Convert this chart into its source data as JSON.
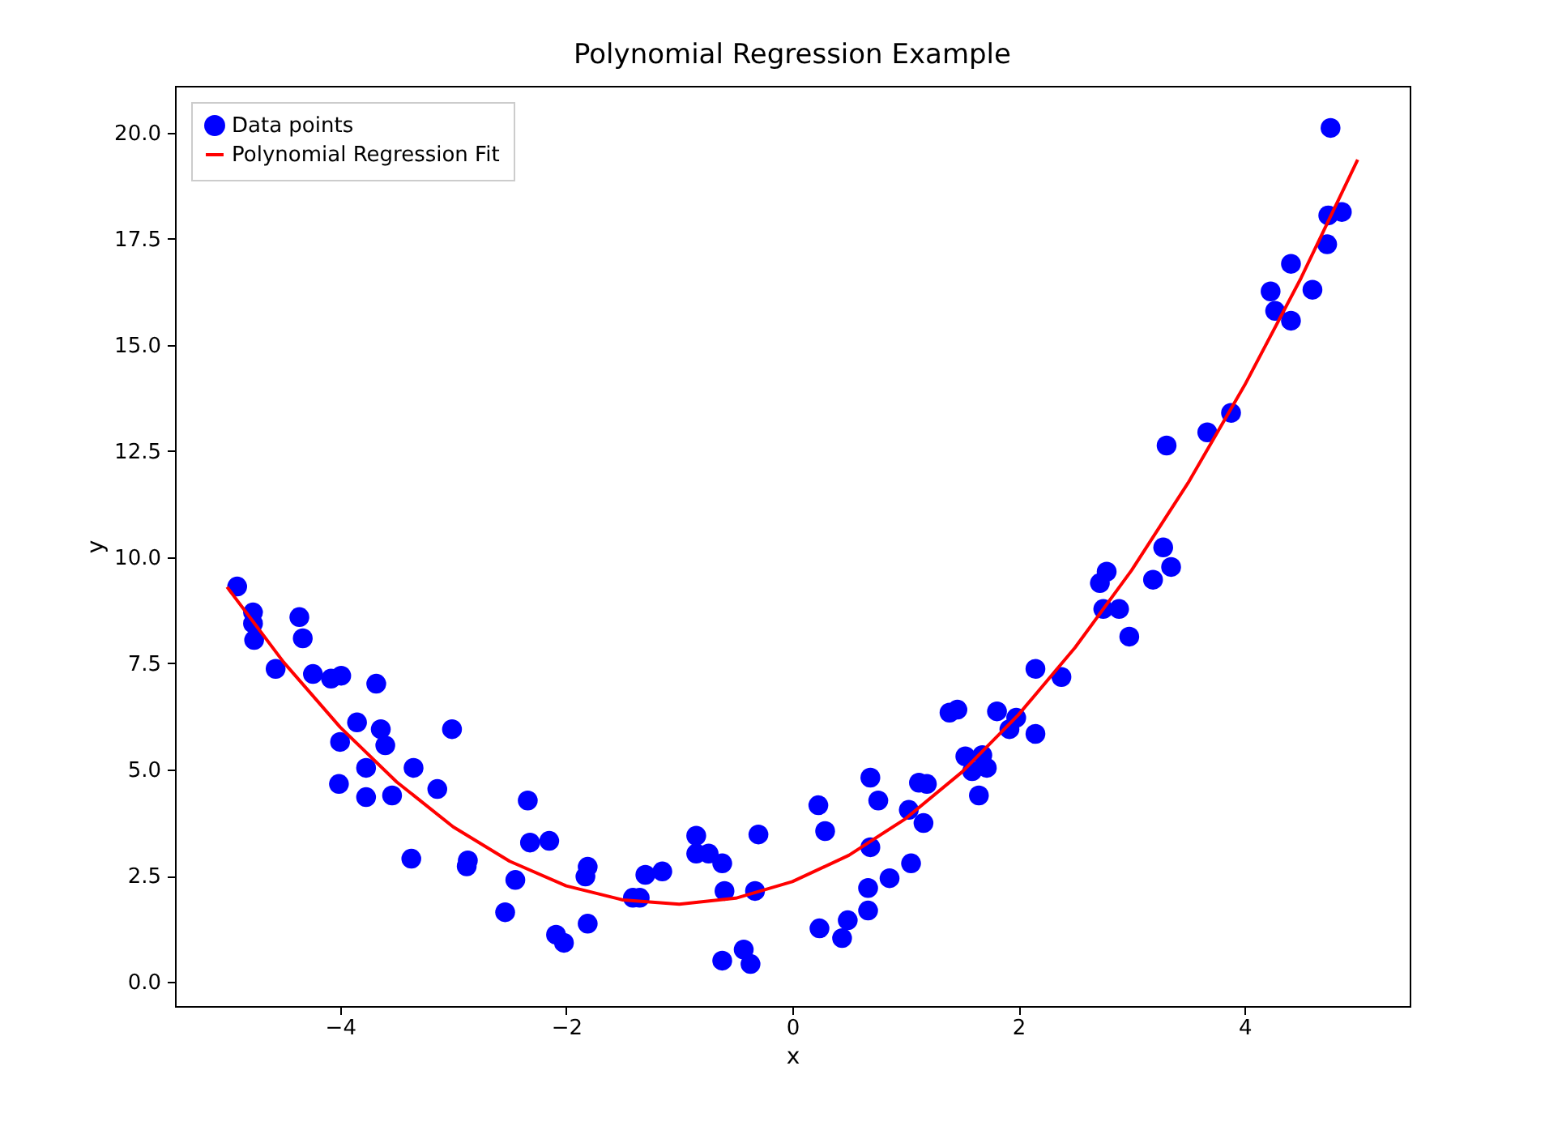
{
  "chart_data": {
    "type": "scatter",
    "title": "Polynomial Regression Example",
    "xlabel": "x",
    "ylabel": "y",
    "xlim": [
      -5.46,
      5.46
    ],
    "ylim": [
      -0.57,
      21.1
    ],
    "xticks": [
      -4,
      -2,
      0,
      2,
      4
    ],
    "yticks": [
      {
        "value": 0,
        "label": "0.0"
      },
      {
        "value": 2.5,
        "label": "2.5"
      },
      {
        "value": 5,
        "label": "5.0"
      },
      {
        "value": 7.5,
        "label": "7.5"
      },
      {
        "value": 10,
        "label": "10.0"
      },
      {
        "value": 12.5,
        "label": "12.5"
      },
      {
        "value": 15,
        "label": "15.0"
      },
      {
        "value": 17.5,
        "label": "17.5"
      },
      {
        "value": 20,
        "label": "20.0"
      }
    ],
    "grid": false,
    "legend": "top left",
    "series": [
      {
        "name": "Data points",
        "marker": "circle",
        "color": "#0000ff",
        "x": [
          -4.91,
          -4.77,
          -4.77,
          -4.76,
          -4.57,
          -4.36,
          -4.33,
          -4.24,
          -4.08,
          -3.99,
          -3.68,
          -4.01,
          -4.0,
          -3.85,
          -3.64,
          -3.6,
          -3.77,
          -3.77,
          -3.54,
          -3.35,
          -3.37,
          -3.14,
          -3.01,
          -2.87,
          -2.88,
          -2.54,
          -2.45,
          -2.34,
          -2.32,
          -2.15,
          -2.09,
          -2.02,
          -1.81,
          -1.83,
          -1.81,
          -1.41,
          -1.35,
          -1.3,
          -1.15,
          -0.85,
          -0.85,
          -0.74,
          -0.62,
          -0.6,
          -0.62,
          -0.43,
          -0.37,
          -0.33,
          -0.3,
          0.23,
          0.29,
          0.24,
          0.44,
          0.49,
          0.67,
          0.67,
          0.69,
          0.69,
          0.76,
          0.86,
          1.03,
          1.05,
          1.12,
          1.19,
          1.16,
          1.39,
          1.46,
          1.53,
          1.59,
          1.65,
          1.72,
          1.68,
          1.81,
          1.92,
          1.98,
          2.15,
          2.15,
          2.38,
          2.72,
          2.78,
          2.75,
          2.89,
          2.98,
          3.19,
          3.28,
          3.35,
          3.31,
          3.67,
          3.88,
          4.23,
          4.27,
          4.41,
          4.41,
          4.6,
          4.73,
          4.74,
          4.86,
          4.76
        ],
        "values": [
          9.31,
          8.7,
          8.44,
          8.05,
          7.37,
          8.59,
          8.09,
          7.25,
          7.14,
          7.21,
          7.02,
          4.66,
          5.65,
          6.11,
          5.95,
          5.57,
          5.04,
          4.35,
          4.39,
          5.04,
          2.9,
          4.54,
          5.95,
          2.86,
          2.72,
          1.64,
          2.4,
          4.27,
          3.28,
          3.32,
          1.11,
          0.92,
          2.71,
          2.48,
          1.37,
          1.98,
          1.98,
          2.52,
          2.6,
          3.44,
          3.02,
          3.02,
          2.79,
          2.14,
          0.5,
          0.76,
          0.42,
          2.14,
          3.47,
          4.16,
          3.55,
          1.26,
          1.03,
          1.45,
          2.21,
          1.68,
          3.17,
          4.81,
          4.27,
          2.44,
          4.05,
          2.79,
          4.69,
          4.66,
          3.74,
          6.34,
          6.41,
          5.31,
          4.96,
          4.39,
          5.04,
          5.34,
          6.37,
          5.95,
          6.22,
          5.84,
          7.37,
          7.18,
          9.39,
          9.66,
          8.78,
          8.78,
          8.13,
          9.47,
          10.23,
          9.77,
          12.63,
          12.94,
          13.4,
          16.26,
          15.8,
          16.91,
          15.57,
          16.3,
          17.37,
          18.05,
          18.13,
          20.11
        ]
      },
      {
        "name": "Polynomial Regression Fit",
        "type": "line",
        "color": "#ff0000",
        "line_style": "solid",
        "x": [
          -5,
          -4.5,
          -4,
          -3.5,
          -3,
          -2.5,
          -2,
          -1.5,
          -1,
          -0.5,
          0,
          0.5,
          1,
          1.5,
          2,
          2.5,
          3,
          3.5,
          4,
          4.5,
          5
        ],
        "values": [
          9.3,
          7.53,
          6.0,
          4.71,
          3.65,
          2.84,
          2.26,
          1.93,
          1.83,
          1.97,
          2.36,
          2.98,
          3.84,
          4.94,
          6.29,
          7.87,
          9.69,
          11.75,
          14.05,
          16.58,
          19.36
        ]
      }
    ]
  }
}
